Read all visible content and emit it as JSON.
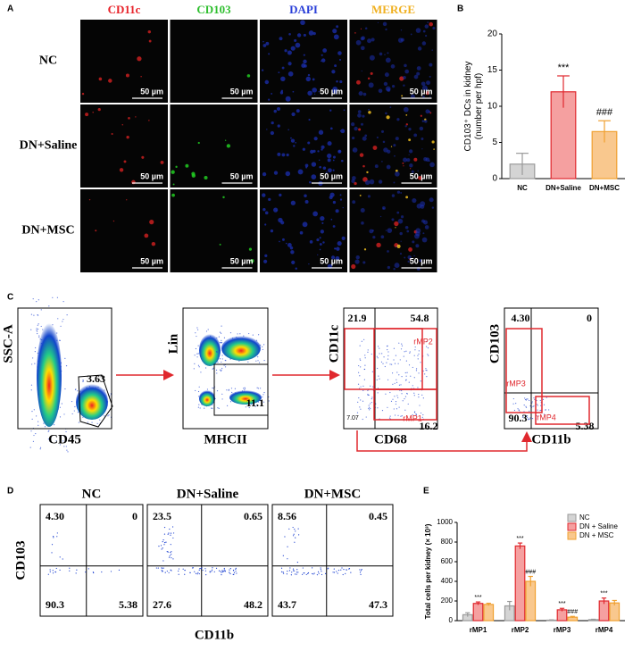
{
  "panel_labels": [
    "A",
    "B",
    "C",
    "D",
    "E"
  ],
  "panel_a": {
    "columns": [
      {
        "text": "CD11c",
        "color": "#e8232a"
      },
      {
        "text": "CD103",
        "color": "#2fbf2f"
      },
      {
        "text": "DAPI",
        "color": "#2a3fd8"
      },
      {
        "text": "MERGE",
        "color": "#f0b020"
      }
    ],
    "rows": [
      "NC",
      "DN+Saline",
      "DN+MSC"
    ],
    "scale_bar": "50 µm"
  },
  "panel_c": {
    "plots": [
      {
        "y_label": "SSC-A",
        "x_label": "CD45",
        "labels": [
          "3.63"
        ]
      },
      {
        "y_label": "Lin",
        "x_label": "MHCII",
        "labels": [
          "11.1"
        ]
      },
      {
        "y_label": "CD11c",
        "x_label": "CD68",
        "labels": [
          "21.9",
          "54.8",
          "rMP2",
          "rMP1",
          "16.2",
          "7.07"
        ]
      },
      {
        "y_label": "CD103",
        "x_label": "CD11b",
        "labels": [
          "4.30",
          "0",
          "rMP3",
          "90.3",
          "rMP4",
          "5.38"
        ]
      }
    ]
  },
  "panel_d": {
    "y_label": "CD103",
    "x_label": "CD11b",
    "plots": [
      {
        "title": "NC",
        "quadrants": [
          "4.30",
          "0",
          "90.3",
          "5.38"
        ]
      },
      {
        "title": "DN+Saline",
        "quadrants": [
          "23.5",
          "0.65",
          "27.6",
          "48.2"
        ]
      },
      {
        "title": "DN+MSC",
        "quadrants": [
          "8.56",
          "0.45",
          "43.7",
          "47.3"
        ]
      }
    ]
  },
  "chart_data": [
    {
      "type": "bar",
      "y_label": [
        "CD103⁺ DCs in kidney",
        "(number per hpf)"
      ],
      "categories": [
        "NC",
        "DN+Saline",
        "DN+MSC"
      ],
      "values": [
        2,
        12,
        6.5
      ],
      "errors": [
        1.5,
        2.2,
        1.5
      ],
      "colors": [
        "#d4d4d4",
        "#f5a0a0",
        "#f9c88e"
      ],
      "edges": [
        "#9a9a9a",
        "#e0282e",
        "#f0a030"
      ],
      "marks": [
        null,
        "***",
        "###"
      ],
      "ylim": [
        0,
        20
      ],
      "yticks": [
        0,
        5,
        10,
        15,
        20
      ]
    },
    {
      "type": "grouped_bar",
      "y_label": "Total cells per kidney (× 10³)",
      "categories": [
        "rMP1",
        "rMP2",
        "rMP3",
        "rMP4"
      ],
      "series": [
        {
          "name": "NC",
          "color": "#d4d4d4",
          "edge": "#9a9a9a",
          "values": [
            60,
            150,
            5,
            10
          ],
          "errors": [
            20,
            45,
            3,
            4
          ],
          "marks": [
            null,
            null,
            null,
            null
          ]
        },
        {
          "name": "DN + Saline",
          "color": "#f5a0a0",
          "edge": "#e0282e",
          "values": [
            175,
            760,
            110,
            200
          ],
          "errors": [
            15,
            30,
            15,
            30
          ],
          "marks": [
            "***",
            "***",
            "***",
            "***"
          ]
        },
        {
          "name": "DN + MSC",
          "color": "#f9c88e",
          "edge": "#f0a030",
          "values": [
            165,
            400,
            35,
            180
          ],
          "errors": [
            12,
            50,
            8,
            25
          ],
          "marks": [
            null,
            "###",
            "###",
            null
          ]
        }
      ],
      "ylim": [
        0,
        1000
      ],
      "yticks": [
        0,
        200,
        400,
        600,
        800,
        1000
      ],
      "legend": "top-right"
    }
  ]
}
